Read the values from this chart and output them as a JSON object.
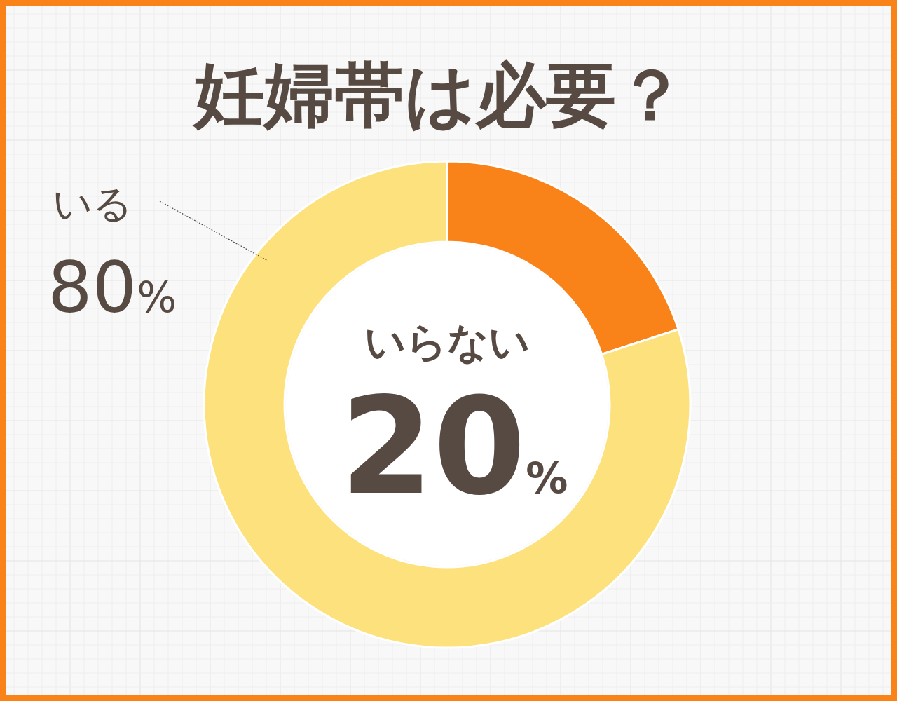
{
  "chart_data": {
    "type": "donut",
    "title": "妊婦帯は必要？",
    "categories": [
      "いらない",
      "いる"
    ],
    "values": [
      20,
      80
    ],
    "value_labels": [
      "20%",
      "80%"
    ],
    "colors": [
      "#f98318",
      "#fde17c"
    ],
    "legend": false
  }
}
